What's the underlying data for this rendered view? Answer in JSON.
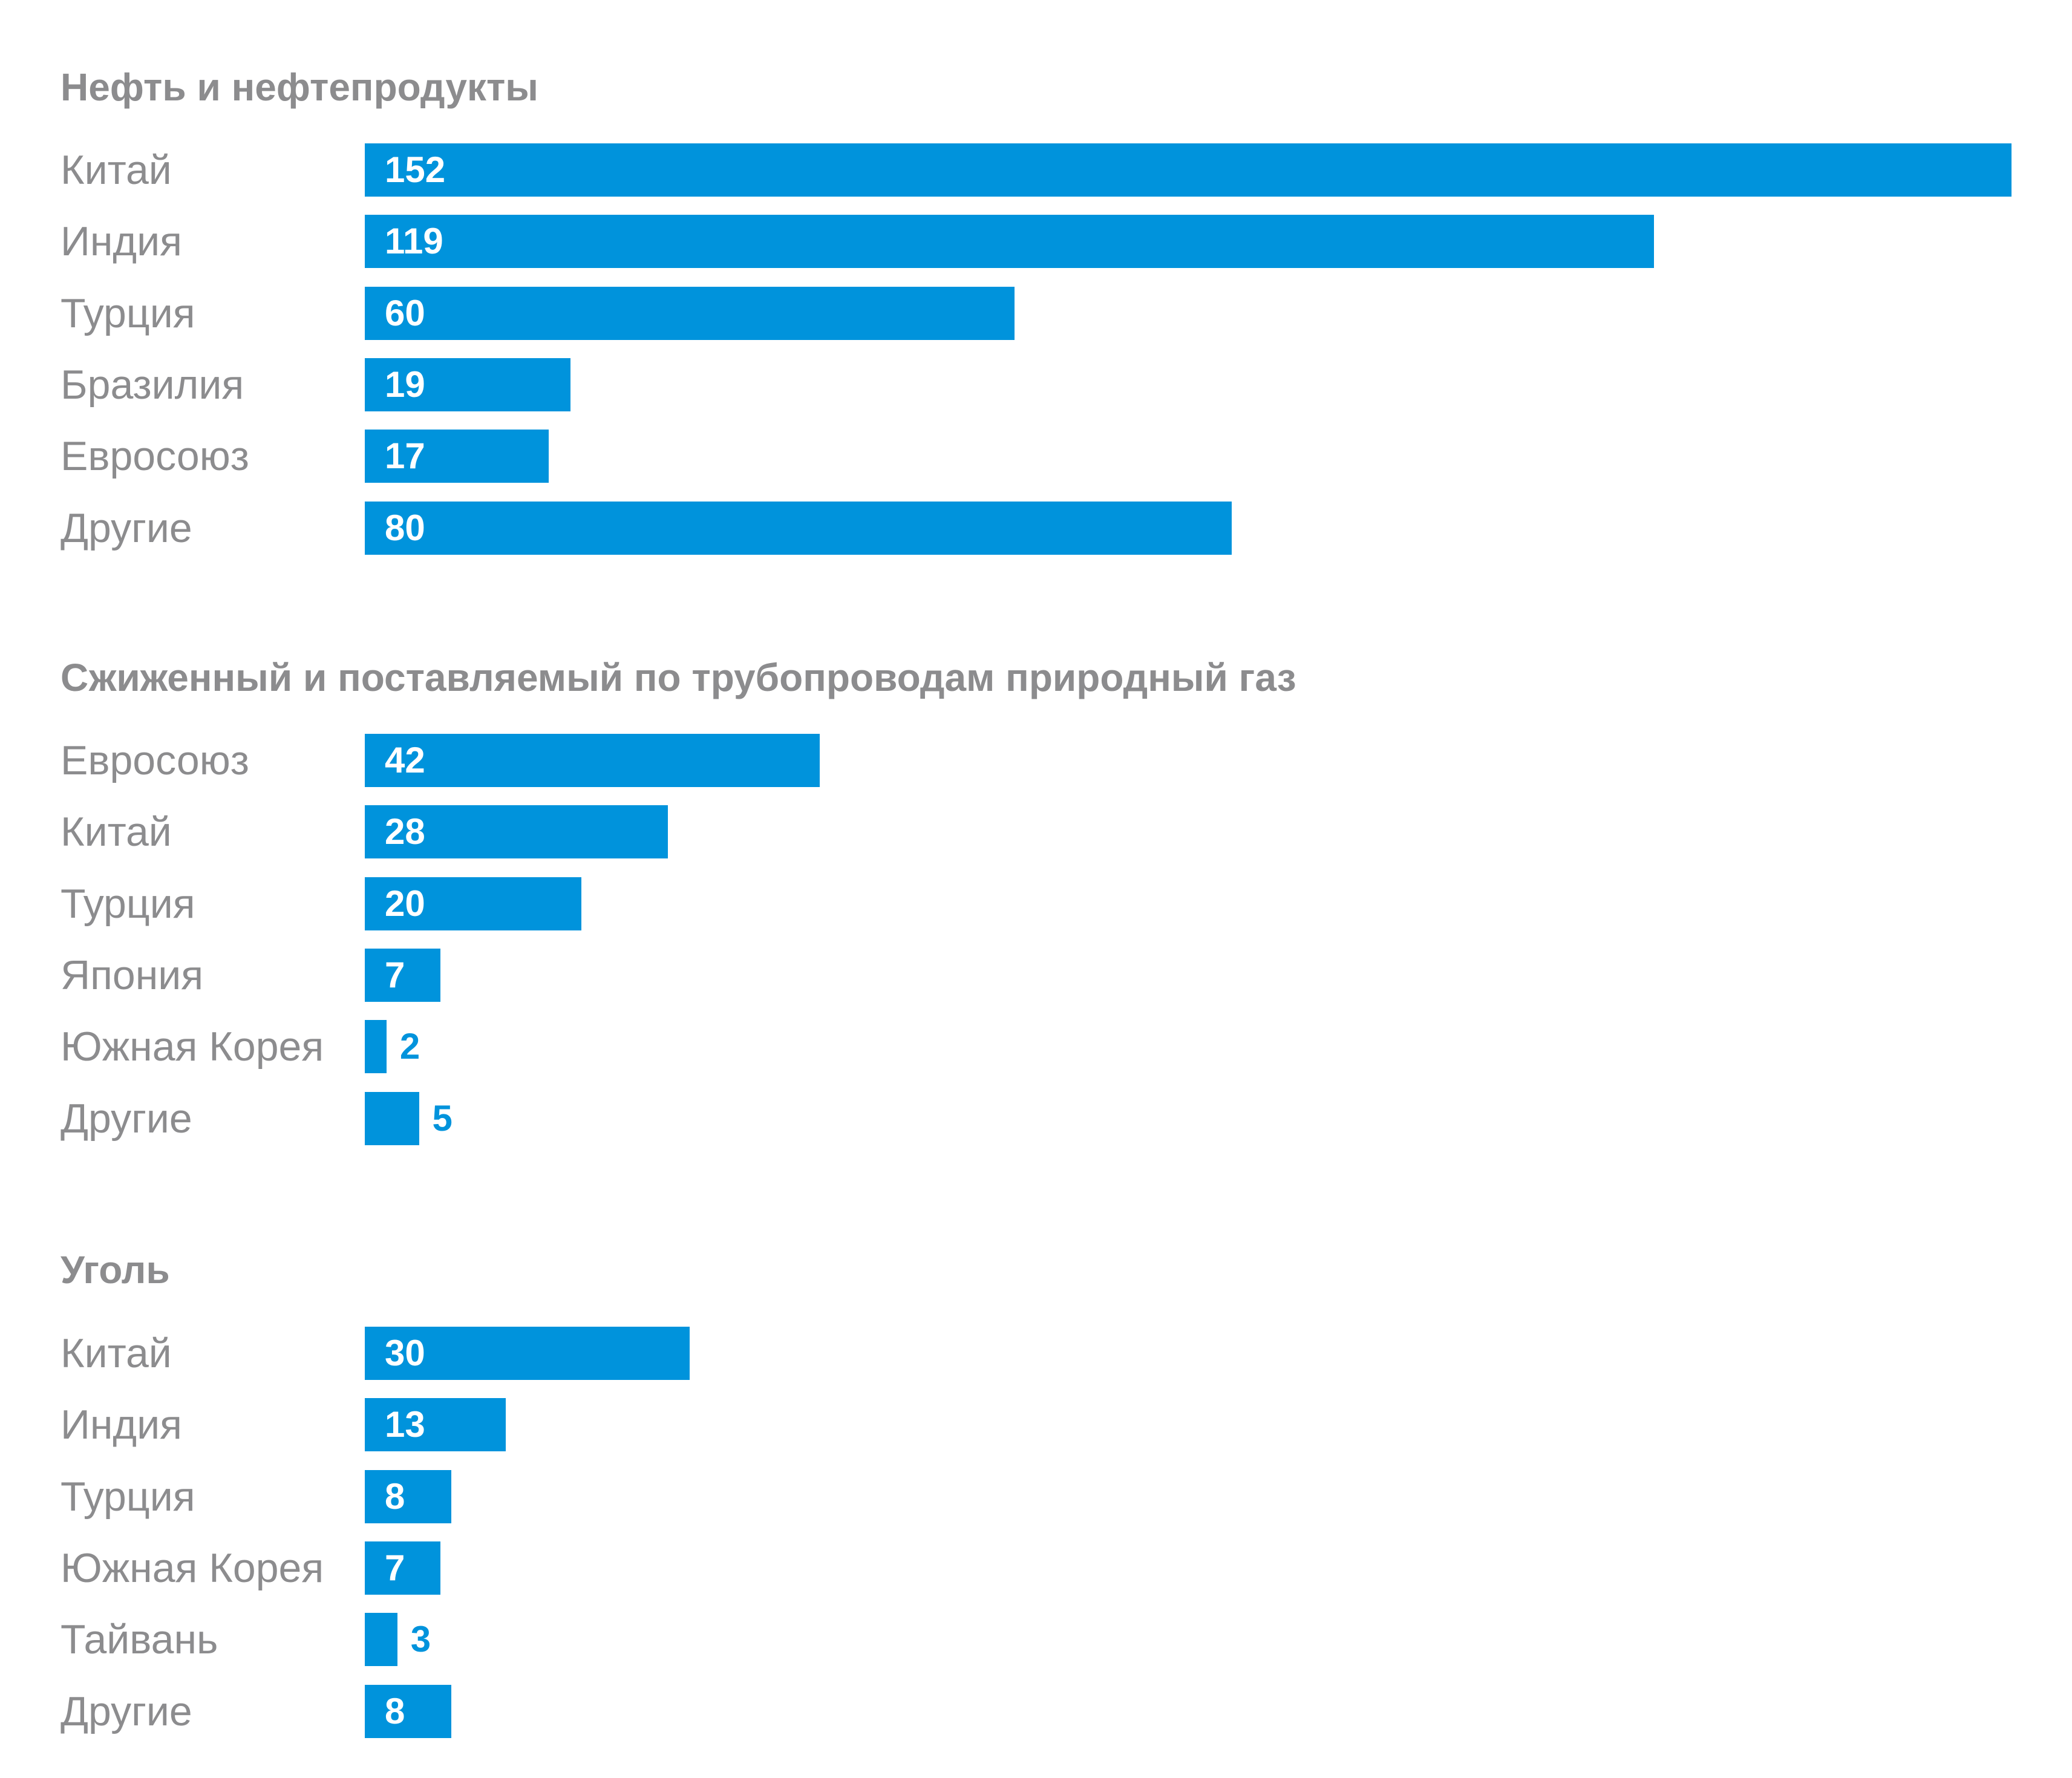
{
  "chart_data": [
    {
      "type": "bar",
      "orientation": "horizontal",
      "title": "Нефть и нефтепродукты",
      "categories": [
        "Китай",
        "Индия",
        "Турция",
        "Бразилия",
        "Евросоюз",
        "Другие"
      ],
      "values": [
        152,
        119,
        60,
        19,
        17,
        80
      ],
      "xlabel": "",
      "ylabel": "",
      "grid": false
    },
    {
      "type": "bar",
      "orientation": "horizontal",
      "title": "Сжиженный и поставляемый по трубопроводам природный газ",
      "categories": [
        "Евросоюз",
        "Китай",
        "Турция",
        "Япония",
        "Южная Корея",
        "Другие"
      ],
      "values": [
        42,
        28,
        20,
        7,
        2,
        5
      ],
      "xlabel": "",
      "ylabel": "",
      "grid": false
    },
    {
      "type": "bar",
      "orientation": "horizontal",
      "title": "Уголь",
      "categories": [
        "Китай",
        "Индия",
        "Турция",
        "Южная Корея",
        "Тайвань",
        "Другие"
      ],
      "values": [
        30,
        13,
        8,
        7,
        3,
        8
      ],
      "xlabel": "",
      "ylabel": "",
      "grid": false
    }
  ],
  "colors": {
    "bar": "#0093dc",
    "label": "#8c8c8e",
    "value_inside": "#ffffff"
  }
}
